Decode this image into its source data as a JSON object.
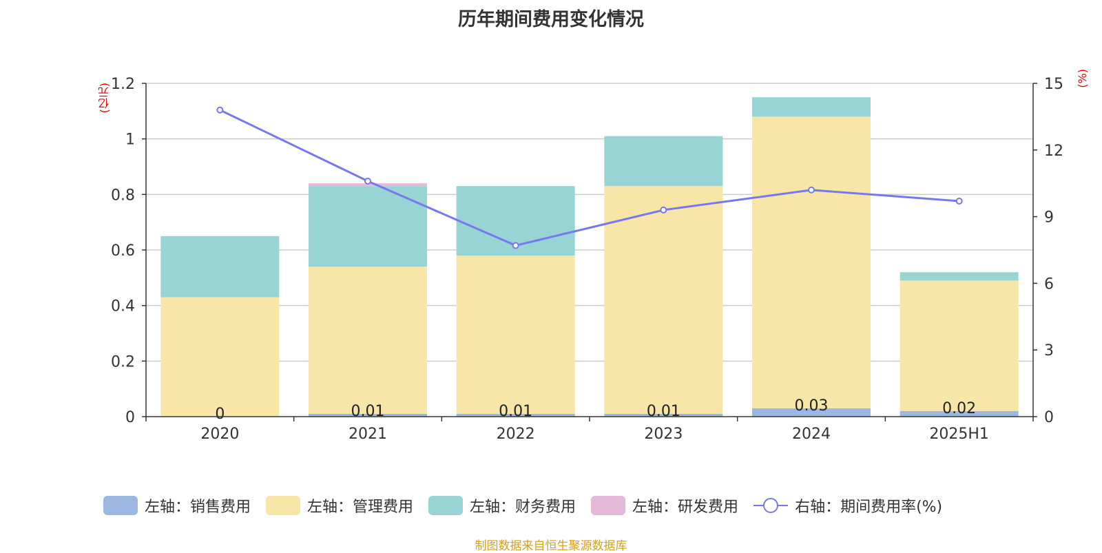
{
  "chart_data": {
    "type": "bar",
    "stacked": true,
    "title": "历年期间费用变化情况",
    "categories": [
      "2020",
      "2021",
      "2022",
      "2023",
      "2024",
      "2025H1"
    ],
    "left_axis_unit": "(亿元)",
    "right_axis_unit": "(%)",
    "ylim_left": [
      0,
      1.2
    ],
    "yticks_left": [
      "0",
      "0.2",
      "0.4",
      "0.6",
      "0.8",
      "1",
      "1.2"
    ],
    "ylim_right": [
      0,
      15
    ],
    "yticks_right": [
      "0",
      "3",
      "6",
      "9",
      "12",
      "15"
    ],
    "grid": true,
    "legend_position": "bottom",
    "series": [
      {
        "name": "左轴：销售费用",
        "axis": "left",
        "kind": "bar",
        "color": "#9db7e3",
        "values": [
          0,
          0.01,
          0.01,
          0.01,
          0.03,
          0.02
        ],
        "labels": [
          "0",
          "0.01",
          "0.01",
          "0.01",
          "0.03",
          "0.02"
        ]
      },
      {
        "name": "左轴：管理费用",
        "axis": "left",
        "kind": "bar",
        "color": "#f7e6a8",
        "values": [
          0.43,
          0.53,
          0.57,
          0.82,
          1.05,
          0.47
        ]
      },
      {
        "name": "左轴：财务费用",
        "axis": "left",
        "kind": "bar",
        "color": "#99d4d4",
        "values": [
          0.22,
          0.29,
          0.25,
          0.18,
          0.07,
          0.03
        ]
      },
      {
        "name": "左轴：研发费用",
        "axis": "left",
        "kind": "bar",
        "color": "#e6b8d9",
        "values": [
          0,
          0.01,
          0,
          0,
          0,
          0
        ]
      },
      {
        "name": "右轴：期间费用率(%)",
        "axis": "right",
        "kind": "line",
        "color": "#7777ee",
        "values": [
          13.8,
          10.6,
          7.7,
          9.3,
          10.2,
          9.7
        ]
      }
    ]
  },
  "source_note": "制图数据来自恒生聚源数据库"
}
